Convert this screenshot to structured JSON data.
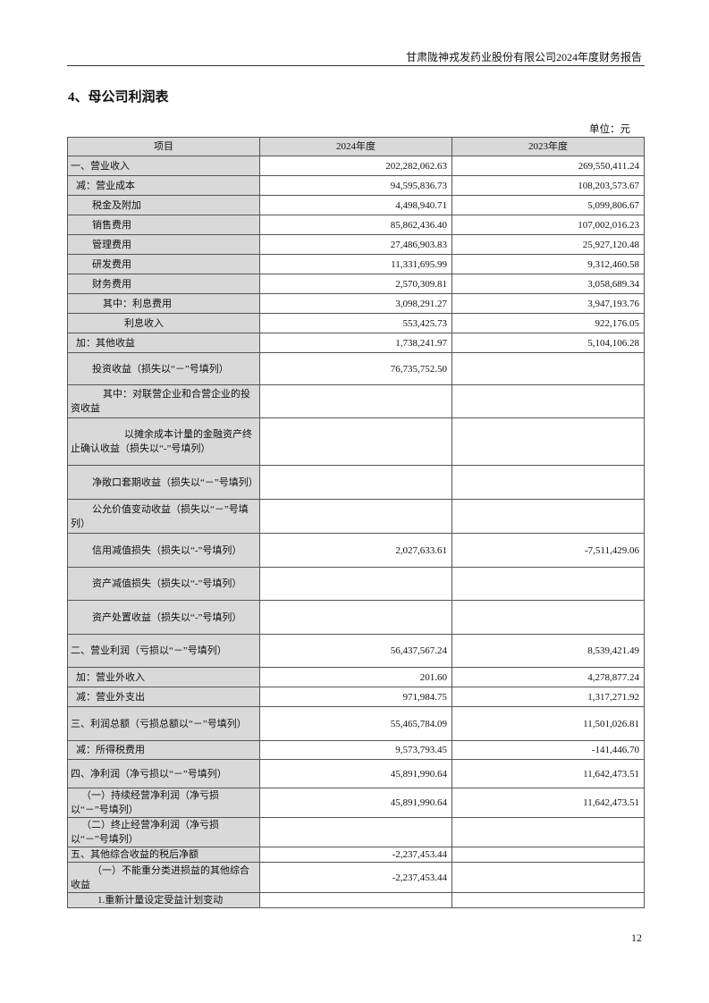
{
  "header": {
    "running_title": "甘肃陇神戎发药业股份有限公司2024年度财务报告"
  },
  "section_title": "4、母公司利润表",
  "unit_label": "单位：元",
  "table": {
    "columns": [
      "项目",
      "2024年度",
      "2023年度"
    ],
    "rows": [
      {
        "item": "一、营业收入",
        "y2024": "202,282,062.63",
        "y2023": "269,550,411.24"
      },
      {
        "item": "减：营业成本",
        "y2024": "94,595,836.73",
        "y2023": "108,203,573.67"
      },
      {
        "item": "税金及附加",
        "y2024": "4,498,940.71",
        "y2023": "5,099,806.67"
      },
      {
        "item": "销售费用",
        "y2024": "85,862,436.40",
        "y2023": "107,002,016.23"
      },
      {
        "item": "管理费用",
        "y2024": "27,486,903.83",
        "y2023": "25,927,120.48"
      },
      {
        "item": "研发费用",
        "y2024": "11,331,695.99",
        "y2023": "9,312,460.58"
      },
      {
        "item": "财务费用",
        "y2024": "2,570,309.81",
        "y2023": "3,058,689.34"
      },
      {
        "item": "其中：利息费用",
        "y2024": "3,098,291.27",
        "y2023": "3,947,193.76"
      },
      {
        "item": "利息收入",
        "y2024": "553,425.73",
        "y2023": "922,176.05"
      },
      {
        "item": "加：其他收益",
        "y2024": "1,738,241.97",
        "y2023": "5,104,106.28"
      },
      {
        "item": "投资收益（损失以“－”号填列）",
        "y2024": "76,735,752.50",
        "y2023": ""
      },
      {
        "item": "其中：对联营企业和合营企业的投资收益",
        "y2024": "",
        "y2023": ""
      },
      {
        "item": "以摊余成本计量的金融资产终止确认收益（损失以“-”号填列）",
        "y2024": "",
        "y2023": ""
      },
      {
        "item": "净敞口套期收益（损失以“－”号填列）",
        "y2024": "",
        "y2023": ""
      },
      {
        "item": "公允价值变动收益（损失以“－”号填列）",
        "y2024": "",
        "y2023": ""
      },
      {
        "item": "信用减值损失（损失以“-”号填列）",
        "y2024": "2,027,633.61",
        "y2023": "-7,511,429.06"
      },
      {
        "item": "资产减值损失（损失以“-”号填列）",
        "y2024": "",
        "y2023": ""
      },
      {
        "item": "资产处置收益（损失以“-”号填列）",
        "y2024": "",
        "y2023": ""
      },
      {
        "item": "二、营业利润（亏损以“－”号填列）",
        "y2024": "56,437,567.24",
        "y2023": "8,539,421.49"
      },
      {
        "item": "加：营业外收入",
        "y2024": "201.60",
        "y2023": "4,278,877.24"
      },
      {
        "item": "减：营业外支出",
        "y2024": "971,984.75",
        "y2023": "1,317,271.92"
      },
      {
        "item": "三、利润总额（亏损总额以“－”号填列）",
        "y2024": "55,465,784.09",
        "y2023": "11,501,026.81"
      },
      {
        "item": "减：所得税费用",
        "y2024": "9,573,793.45",
        "y2023": "-141,446.70"
      },
      {
        "item": "四、净利润（净亏损以“－”号填列）",
        "y2024": "45,891,990.64",
        "y2023": "11,642,473.51"
      },
      {
        "item": "（一）持续经营净利润（净亏损以“－”号填列）",
        "y2024": "45,891,990.64",
        "y2023": "11,642,473.51"
      },
      {
        "item": "（二）终止经营净利润（净亏损以“－”号填列）",
        "y2024": "",
        "y2023": ""
      },
      {
        "item": "五、其他综合收益的税后净额",
        "y2024": "-2,237,453.44",
        "y2023": ""
      },
      {
        "item": "（一）不能重分类进损益的其他综合收益",
        "y2024": "-2,237,453.44",
        "y2023": ""
      },
      {
        "item": "1.重新计量设定受益计划变动",
        "y2024": "",
        "y2023": ""
      }
    ]
  },
  "footer": {
    "page_number": "12"
  }
}
